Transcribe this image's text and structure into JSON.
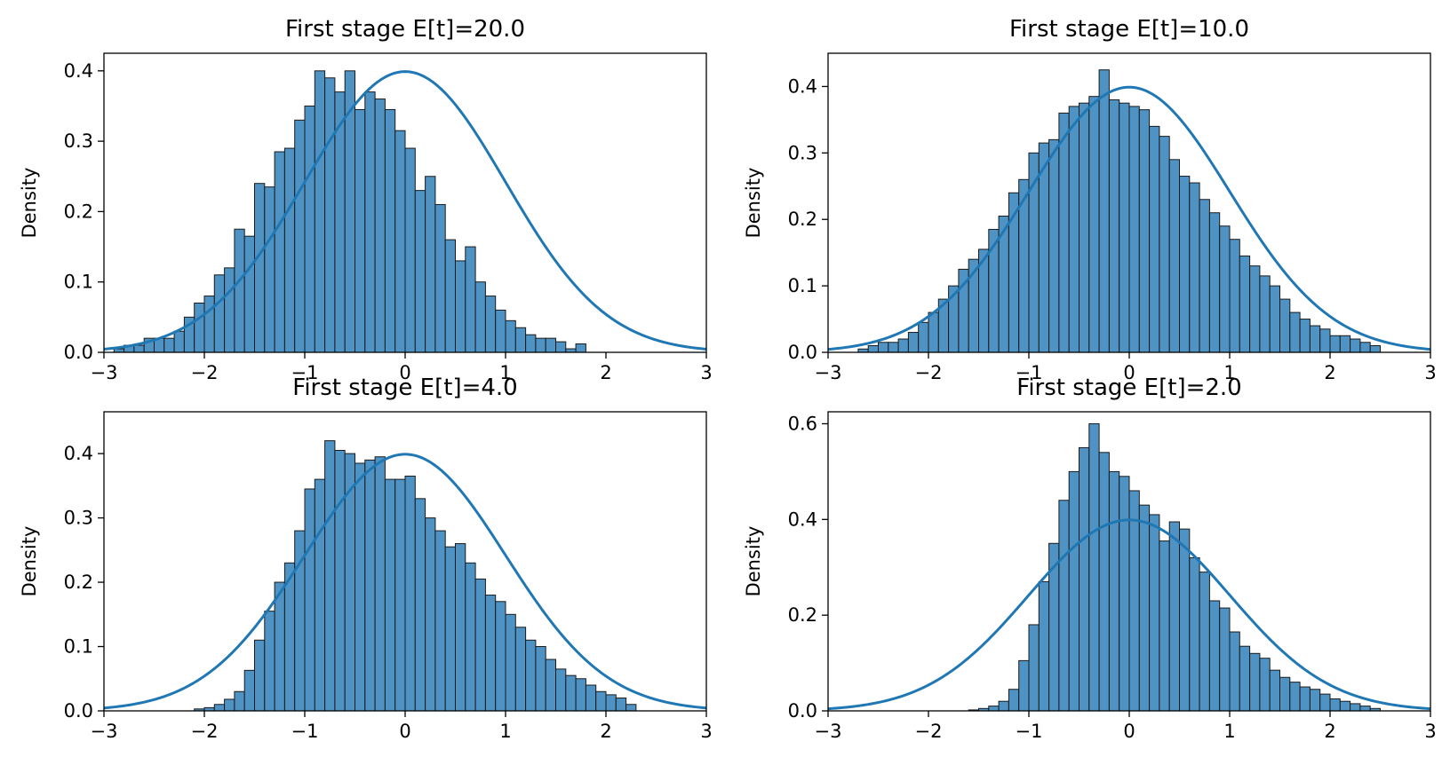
{
  "colors": {
    "bar_fill": "#4f93c4",
    "bar_edge": "#1a1a1a",
    "curve": "#1f77b4",
    "axis": "#000000"
  },
  "chart_data": [
    {
      "type": "bar",
      "title": "First stage E[t]=20.0",
      "xlabel": "",
      "ylabel": "Density",
      "xlim": [
        -3,
        3
      ],
      "ylim": [
        0,
        0.425
      ],
      "xticks": [
        "−3",
        "−2",
        "−1",
        "0",
        "1",
        "2",
        "3"
      ],
      "yticks": [
        "0.0",
        "0.1",
        "0.2",
        "0.3",
        "0.4"
      ],
      "grid": false,
      "bins": {
        "start": -2.9,
        "width": 0.1,
        "values": [
          0.005,
          0.01,
          0.01,
          0.02,
          0.02,
          0.02,
          0.03,
          0.05,
          0.07,
          0.08,
          0.11,
          0.12,
          0.175,
          0.165,
          0.24,
          0.235,
          0.285,
          0.29,
          0.33,
          0.35,
          0.4,
          0.39,
          0.37,
          0.4,
          0.345,
          0.37,
          0.36,
          0.345,
          0.315,
          0.29,
          0.23,
          0.25,
          0.21,
          0.16,
          0.13,
          0.15,
          0.1,
          0.08,
          0.06,
          0.045,
          0.035,
          0.025,
          0.02,
          0.02,
          0.015,
          0.005,
          0.012
        ]
      },
      "series": [
        {
          "name": "Histogram",
          "kind": "bar"
        },
        {
          "name": "Standard normal density",
          "kind": "line"
        }
      ]
    },
    {
      "type": "bar",
      "title": "First stage E[t]=10.0",
      "xlabel": "",
      "ylabel": "Density",
      "xlim": [
        -3,
        3
      ],
      "ylim": [
        0,
        0.45
      ],
      "xticks": [
        "−3",
        "−2",
        "−1",
        "0",
        "1",
        "2",
        "3"
      ],
      "yticks": [
        "0.0",
        "0.1",
        "0.2",
        "0.3",
        "0.4"
      ],
      "grid": false,
      "bins": {
        "start": -2.7,
        "width": 0.1,
        "values": [
          0.005,
          0.01,
          0.015,
          0.015,
          0.02,
          0.03,
          0.045,
          0.06,
          0.08,
          0.1,
          0.125,
          0.14,
          0.155,
          0.185,
          0.205,
          0.24,
          0.26,
          0.3,
          0.315,
          0.32,
          0.36,
          0.37,
          0.375,
          0.385,
          0.425,
          0.38,
          0.375,
          0.37,
          0.365,
          0.34,
          0.325,
          0.29,
          0.265,
          0.255,
          0.23,
          0.21,
          0.19,
          0.17,
          0.145,
          0.13,
          0.115,
          0.1,
          0.08,
          0.06,
          0.05,
          0.04,
          0.035,
          0.025,
          0.025,
          0.02,
          0.015,
          0.01
        ]
      },
      "series": [
        {
          "name": "Histogram",
          "kind": "bar"
        },
        {
          "name": "Standard normal density",
          "kind": "line"
        }
      ]
    },
    {
      "type": "bar",
      "title": "First stage E[t]=4.0",
      "xlabel": "",
      "ylabel": "Density",
      "xlim": [
        -3,
        3
      ],
      "ylim": [
        0,
        0.465
      ],
      "xticks": [
        "−3",
        "−2",
        "−1",
        "0",
        "1",
        "2",
        "3"
      ],
      "yticks": [
        "0.0",
        "0.1",
        "0.2",
        "0.3",
        "0.4"
      ],
      "grid": false,
      "bins": {
        "start": -2.1,
        "width": 0.1,
        "values": [
          0.003,
          0.005,
          0.01,
          0.018,
          0.03,
          0.063,
          0.11,
          0.155,
          0.2,
          0.23,
          0.28,
          0.345,
          0.36,
          0.42,
          0.405,
          0.4,
          0.385,
          0.39,
          0.395,
          0.36,
          0.36,
          0.365,
          0.33,
          0.3,
          0.28,
          0.255,
          0.26,
          0.23,
          0.205,
          0.18,
          0.17,
          0.15,
          0.13,
          0.11,
          0.1,
          0.08,
          0.065,
          0.055,
          0.05,
          0.04,
          0.03,
          0.025,
          0.02,
          0.01
        ]
      },
      "series": [
        {
          "name": "Histogram",
          "kind": "bar"
        },
        {
          "name": "Standard normal density",
          "kind": "line"
        }
      ]
    },
    {
      "type": "bar",
      "title": "First stage E[t]=2.0",
      "xlabel": "",
      "ylabel": "Density",
      "xlim": [
        -3,
        3
      ],
      "ylim": [
        0,
        0.625
      ],
      "xticks": [
        "−3",
        "−2",
        "−1",
        "0",
        "1",
        "2",
        "3"
      ],
      "yticks": [
        "0.0",
        "0.2",
        "0.4",
        "0.6"
      ],
      "grid": false,
      "bins": {
        "start": -1.6,
        "width": 0.1,
        "values": [
          0.002,
          0.005,
          0.01,
          0.02,
          0.045,
          0.105,
          0.18,
          0.27,
          0.35,
          0.44,
          0.5,
          0.55,
          0.6,
          0.54,
          0.5,
          0.49,
          0.46,
          0.43,
          0.41,
          0.355,
          0.395,
          0.38,
          0.32,
          0.29,
          0.23,
          0.215,
          0.165,
          0.135,
          0.12,
          0.11,
          0.085,
          0.07,
          0.06,
          0.05,
          0.045,
          0.035,
          0.025,
          0.02,
          0.015,
          0.01,
          0.005
        ]
      },
      "series": [
        {
          "name": "Histogram",
          "kind": "bar"
        },
        {
          "name": "Standard normal density",
          "kind": "line"
        }
      ]
    }
  ]
}
